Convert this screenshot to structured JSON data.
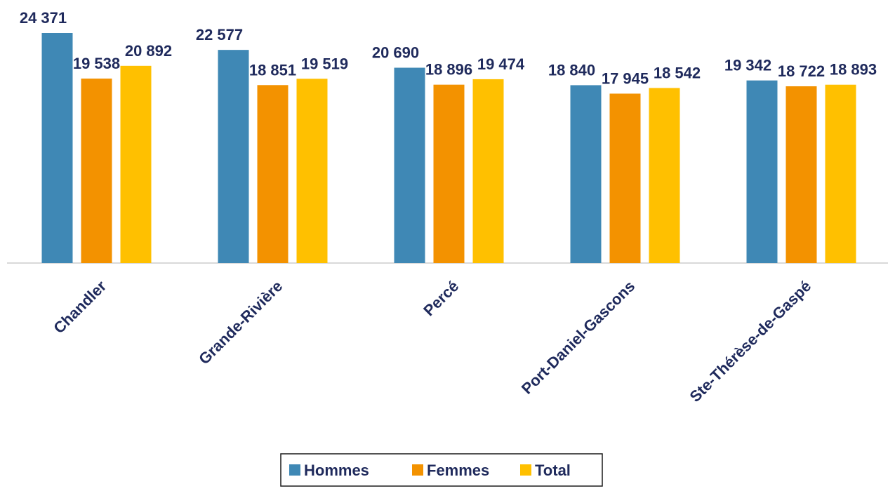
{
  "chart_data": {
    "type": "bar",
    "categories": [
      "Chandler",
      "Grande-Rivière",
      "Percé",
      "Port-Daniel-Gascons",
      "Ste-Thérèse-de-Gaspé"
    ],
    "series": [
      {
        "name": "Hommes",
        "color": "#3f88b5",
        "values": [
          24371,
          22577,
          20690,
          18840,
          19342
        ],
        "value_labels": [
          "24 371",
          "22 577",
          "20 690",
          "18 840",
          "19 342"
        ]
      },
      {
        "name": "Femmes",
        "color": "#f39200",
        "values": [
          19538,
          18851,
          18896,
          17945,
          18722
        ],
        "value_labels": [
          "19 538",
          "18 851",
          "18 896",
          "17 945",
          "18 722"
        ]
      },
      {
        "name": "Total",
        "color": "#ffc000",
        "values": [
          20892,
          19519,
          19474,
          18542,
          18893
        ],
        "value_labels": [
          "20 892",
          "19 519",
          "19 474",
          "18 542",
          "18 893"
        ]
      }
    ],
    "legend": "bottom"
  }
}
